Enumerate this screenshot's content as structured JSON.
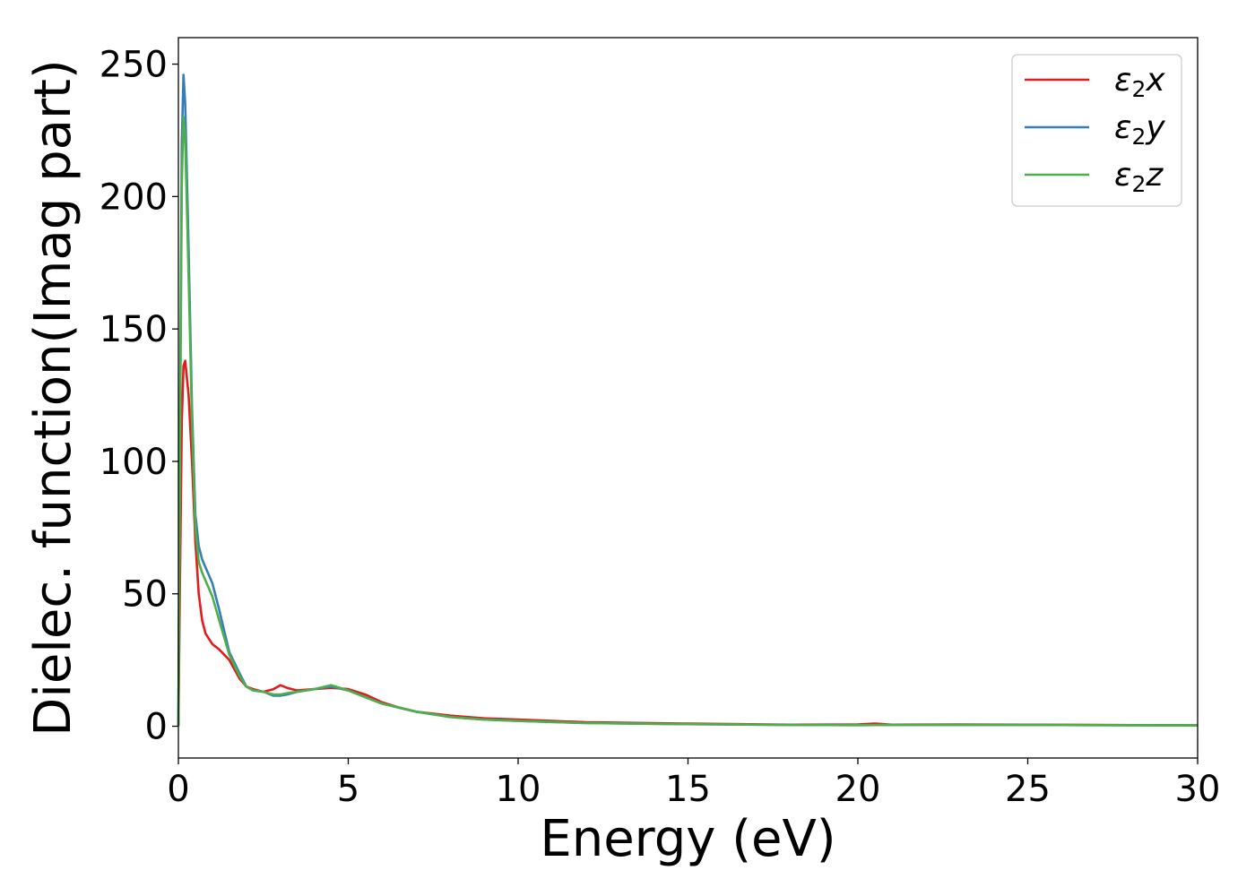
{
  "chart_data": {
    "type": "line",
    "title": "",
    "xlabel": "Energy (eV)",
    "ylabel": "Dielec. function(Imag part)",
    "xlim": [
      0,
      30
    ],
    "ylim": [
      -12,
      260
    ],
    "xticks": [
      0,
      5,
      10,
      15,
      20,
      25,
      30
    ],
    "yticks": [
      0,
      50,
      100,
      150,
      200,
      250
    ],
    "xtick_labels": [
      "0",
      "5",
      "10",
      "15",
      "20",
      "25",
      "30"
    ],
    "ytick_labels": [
      "0",
      "50",
      "100",
      "150",
      "200",
      "250"
    ],
    "grid": false,
    "legend_position": "top-right",
    "series": [
      {
        "name": "ε2x",
        "base": "ε",
        "sub": "2",
        "var": "x",
        "color": "#e41a1c",
        "x": [
          0,
          0.05,
          0.1,
          0.15,
          0.2,
          0.3,
          0.4,
          0.5,
          0.6,
          0.7,
          0.8,
          1.0,
          1.2,
          1.5,
          1.8,
          2.0,
          2.2,
          2.5,
          2.8,
          3.0,
          3.2,
          3.5,
          4.0,
          4.5,
          5.0,
          5.5,
          6.0,
          6.5,
          7.0,
          8.0,
          9.0,
          10.0,
          12.0,
          15.0,
          18.0,
          20.0,
          20.5,
          21.0,
          23.0,
          25.0,
          27.0,
          30.0
        ],
        "y": [
          0,
          60,
          115,
          136,
          138,
          125,
          100,
          70,
          50,
          40,
          35,
          31,
          29,
          25,
          18,
          15,
          14,
          13,
          14,
          15.5,
          14.5,
          13.5,
          14,
          14.5,
          14,
          12,
          9,
          7,
          5.5,
          4,
          3,
          2.5,
          1.5,
          1,
          0.6,
          0.7,
          1,
          0.6,
          0.7,
          0.6,
          0.5,
          0.3
        ]
      },
      {
        "name": "ε2y",
        "base": "ε",
        "sub": "2",
        "var": "y",
        "color": "#377eb8",
        "x": [
          0,
          0.05,
          0.1,
          0.15,
          0.2,
          0.3,
          0.4,
          0.5,
          0.6,
          0.7,
          0.8,
          1.0,
          1.2,
          1.5,
          1.8,
          2.0,
          2.2,
          2.5,
          2.8,
          3.0,
          3.2,
          3.5,
          4.0,
          4.5,
          5.0,
          5.5,
          6.0,
          6.5,
          7.0,
          8.0,
          9.0,
          10.0,
          12.0,
          15.0,
          18.0,
          20.0,
          21.0,
          23.0,
          25.0,
          27.0,
          30.0
        ],
        "y": [
          0,
          120,
          220,
          246,
          235,
          180,
          120,
          80,
          68,
          63,
          60,
          54,
          44,
          28,
          20,
          15,
          13.5,
          13,
          11.5,
          11.5,
          12,
          13,
          14,
          15,
          13.5,
          11,
          8.5,
          7,
          5.5,
          3.5,
          2.5,
          2,
          1.2,
          0.8,
          0.5,
          0.4,
          0.5,
          0.5,
          0.5,
          0.4,
          0.3
        ]
      },
      {
        "name": "ε2z",
        "base": "ε",
        "sub": "2",
        "var": "z",
        "color": "#4daf4a",
        "x": [
          0,
          0.05,
          0.1,
          0.15,
          0.2,
          0.3,
          0.4,
          0.5,
          0.6,
          0.7,
          0.8,
          1.0,
          1.2,
          1.5,
          1.8,
          2.0,
          2.2,
          2.5,
          2.8,
          3.0,
          3.2,
          3.5,
          4.0,
          4.5,
          5.0,
          5.5,
          6.0,
          6.5,
          7.0,
          8.0,
          9.0,
          10.0,
          12.0,
          15.0,
          18.0,
          20.0,
          21.0,
          23.0,
          25.0,
          27.0,
          30.0
        ],
        "y": [
          0,
          110,
          205,
          230,
          222,
          170,
          115,
          75,
          62,
          58,
          55,
          49,
          40,
          27,
          19,
          15,
          13.5,
          13,
          12,
          12,
          12.5,
          13,
          14,
          15.5,
          13.5,
          11,
          8.5,
          7,
          5.5,
          3.5,
          2.5,
          2,
          1.2,
          0.8,
          0.5,
          0.4,
          0.5,
          0.5,
          0.5,
          0.4,
          0.3
        ]
      }
    ]
  }
}
